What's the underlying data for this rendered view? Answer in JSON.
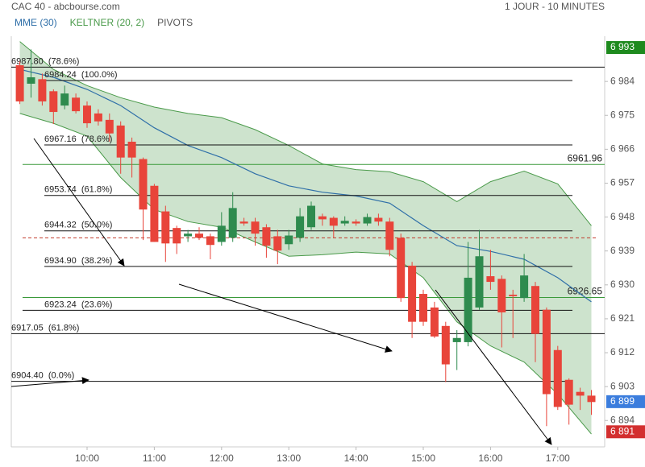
{
  "chart_data": {
    "type": "candlestick",
    "title": "CAC 40 - abcbourse.com",
    "subtitle": "1 JOUR - 10 MINUTES",
    "x": [
      "09:00",
      "09:10",
      "09:20",
      "09:30",
      "09:40",
      "09:50",
      "10:00",
      "10:10",
      "10:20",
      "10:30",
      "10:40",
      "10:50",
      "11:00",
      "11:10",
      "11:20",
      "11:30",
      "11:40",
      "11:50",
      "12:00",
      "12:10",
      "12:20",
      "12:30",
      "12:40",
      "12:50",
      "13:00",
      "13:10",
      "13:20",
      "13:30",
      "13:40",
      "13:50",
      "14:00",
      "14:10",
      "14:20",
      "14:30",
      "14:40",
      "14:50",
      "15:00",
      "15:10",
      "15:20",
      "15:30",
      "15:40",
      "15:50",
      "16:00",
      "16:10",
      "16:20",
      "16:30",
      "16:40",
      "16:50",
      "17:00",
      "17:10",
      "17:20",
      "17:30"
    ],
    "open": [
      6988.3,
      6983.4,
      6984.6,
      6981.4,
      6977.6,
      6979.7,
      6977.6,
      6975.5,
      6973.8,
      6972.3,
      6968.0,
      6963.4,
      6956.3,
      6949.5,
      6945.1,
      6942.9,
      6943.6,
      6942.9,
      6941.4,
      6942.5,
      6946.8,
      6946.8,
      6945.3,
      6942.9,
      6940.8,
      6942.5,
      6945.3,
      6948.2,
      6947.8,
      6946.3,
      6946.8,
      6946.3,
      6947.8,
      6946.8,
      6942.5,
      6935.1,
      6927.6,
      6924.0,
      6919.1,
      6914.8,
      6914.8,
      6924.0,
      6932.3,
      6931.6,
      6927.4,
      6926.5,
      6929.7,
      6923.4,
      6912.7,
      6904.8,
      6901.6,
      6900.6
    ],
    "high": [
      6989.3,
      6992.5,
      6986.1,
      6981.9,
      6982.9,
      6980.8,
      6978.7,
      6976.6,
      6975.5,
      6973.4,
      6969.1,
      6963.8,
      6956.8,
      6951.0,
      6945.7,
      6944.6,
      6945.3,
      6943.6,
      6949.3,
      6954.6,
      6947.8,
      6947.8,
      6946.1,
      6944.6,
      6944.6,
      6950.4,
      6952.1,
      6948.9,
      6948.2,
      6948.2,
      6947.4,
      6948.9,
      6948.9,
      6947.8,
      6943.6,
      6936.1,
      6928.7,
      6925.5,
      6920.2,
      6918.0,
      6941.4,
      6944.6,
      6939.3,
      6932.5,
      6928.7,
      6938.2,
      6930.8,
      6924.0,
      6913.8,
      6905.2,
      6902.7,
      6902.1
    ],
    "low": [
      6978.0,
      6979.7,
      6977.6,
      6972.7,
      6976.6,
      6975.5,
      6971.7,
      6972.3,
      6968.0,
      6959.5,
      6958.5,
      6941.9,
      6941.4,
      6936.1,
      6938.2,
      6941.4,
      6941.9,
      6936.8,
      6940.4,
      6941.4,
      6945.7,
      6940.4,
      6937.2,
      6935.5,
      6939.3,
      6941.4,
      6944.6,
      6945.7,
      6942.5,
      6945.7,
      6945.7,
      6945.7,
      6945.7,
      6937.6,
      6925.5,
      6915.9,
      6919.1,
      6915.9,
      6904.2,
      6907.4,
      6913.7,
      6923.4,
      6928.7,
      6913.4,
      6915.9,
      6925.5,
      6909.5,
      6892.5,
      6896.8,
      6892.9,
      6896.8,
      6895.5
    ],
    "close": [
      6978.7,
      6985.1,
      6978.7,
      6975.9,
      6980.8,
      6976.1,
      6972.9,
      6973.4,
      6970.2,
      6963.8,
      6963.8,
      6950.0,
      6941.4,
      6941.0,
      6941.0,
      6943.6,
      6942.5,
      6940.6,
      6945.7,
      6950.4,
      6946.3,
      6943.6,
      6940.4,
      6939.1,
      6943.1,
      6948.2,
      6951.0,
      6947.4,
      6945.7,
      6947.0,
      6946.3,
      6948.0,
      6946.8,
      6939.3,
      6926.5,
      6920.2,
      6920.2,
      6916.3,
      6908.9,
      6915.9,
      6931.9,
      6937.6,
      6930.8,
      6922.7,
      6927.0,
      6932.5,
      6917.0,
      6901.0,
      6897.6,
      6898.2,
      6900.6,
      6898.9
    ],
    "up_color": "#2e8b4e",
    "down_color": "#e8443a",
    "xticks": [
      "10:00",
      "11:00",
      "12:00",
      "13:00",
      "14:00",
      "15:00",
      "16:00",
      "17:00"
    ],
    "ylim": [
      6887,
      6996
    ],
    "yticks": [
      {
        "value": 6894,
        "label": "6 894"
      },
      {
        "value": 6903,
        "label": "6 903"
      },
      {
        "value": 6912,
        "label": "6 912"
      },
      {
        "value": 6921,
        "label": "6 921"
      },
      {
        "value": 6930,
        "label": "6 930"
      },
      {
        "value": 6939,
        "label": "6 939"
      },
      {
        "value": 6948,
        "label": "6 948"
      },
      {
        "value": 6957,
        "label": "6 957"
      },
      {
        "value": 6966,
        "label": "6 966"
      },
      {
        "value": 6975,
        "label": "6 975"
      },
      {
        "value": 6984,
        "label": "6 984"
      }
    ],
    "overlays": [
      {
        "name": "MME (30)",
        "color": "#2f6fa8",
        "x": [
          "09:00",
          "09:30",
          "10:00",
          "10:30",
          "11:00",
          "11:30",
          "12:00",
          "12:30",
          "13:00",
          "13:30",
          "14:00",
          "14:30",
          "15:00",
          "15:30",
          "16:00",
          "16:30",
          "17:00",
          "17:30"
        ],
        "values": [
          6987.2,
          6985.1,
          6981.9,
          6977.6,
          6971.7,
          6967.0,
          6963.8,
          6959.5,
          6956.3,
          6954.6,
          6953.6,
          6951.7,
          6945.7,
          6940.4,
          6938.9,
          6936.8,
          6931.9,
          6925.5
        ]
      },
      {
        "name": "KELTNER (20, 2)",
        "color": "#4a9a4a",
        "x": [
          "09:00",
          "09:30",
          "10:00",
          "10:30",
          "11:00",
          "11:30",
          "12:00",
          "12:30",
          "13:00",
          "13:30",
          "14:00",
          "14:30",
          "15:00",
          "15:30",
          "16:00",
          "16:30",
          "17:00",
          "17:30"
        ],
        "upper": [
          6994.6,
          6987.2,
          6982.9,
          6979.7,
          6977.2,
          6975.5,
          6974.4,
          6971.2,
          6967.0,
          6962.1,
          6960.6,
          6960.0,
          6957.4,
          6952.1,
          6957.4,
          6960.2,
          6956.8,
          6945.7
        ],
        "lower": [
          6975.5,
          6972.9,
          6969.5,
          6958.5,
          6950.0,
          6946.8,
          6945.3,
          6941.4,
          6937.6,
          6938.0,
          6938.7,
          6938.2,
          6931.9,
          6920.2,
          6913.8,
          6909.5,
          6901.0,
          6890.4
        ]
      }
    ],
    "pivots": {
      "name": "PIVOTS",
      "color": "#111111",
      "levels": [
        {
          "value": 6987.8,
          "label": "6987.80  (78.6%)"
        },
        {
          "value": 6984.24,
          "label": "6984.24  (100.0%)"
        },
        {
          "value": 6967.16,
          "label": "6967.16  (78.6%)"
        },
        {
          "value": 6953.74,
          "label": "6953.74  (61.8%)"
        },
        {
          "value": 6944.32,
          "label": "6944.32  (50.0%)"
        },
        {
          "value": 6934.9,
          "label": "6934.90  (38.2%)"
        },
        {
          "value": 6923.24,
          "label": "6923.24  (23.6%)"
        },
        {
          "value": 6917.05,
          "label": "6917.05  (61.8%)"
        },
        {
          "value": 6904.4,
          "label": "6904.40  (0.0%)"
        }
      ]
    },
    "levels": {
      "color": "#3a9a3a",
      "items": [
        {
          "value": 6961.96,
          "label": "6961.96"
        },
        {
          "value": 6926.65,
          "label": "6926.65"
        }
      ]
    },
    "reference_line": {
      "value": 6942.5,
      "color": "#c0392b"
    },
    "price_markers": [
      {
        "value": 6993,
        "label": "6 993",
        "color": "#1e8a1e"
      },
      {
        "value": 6899,
        "label": "6 899",
        "color": "#3b7ddd"
      },
      {
        "value": 6891,
        "label": "6 891",
        "color": "#d32f2f"
      }
    ]
  }
}
